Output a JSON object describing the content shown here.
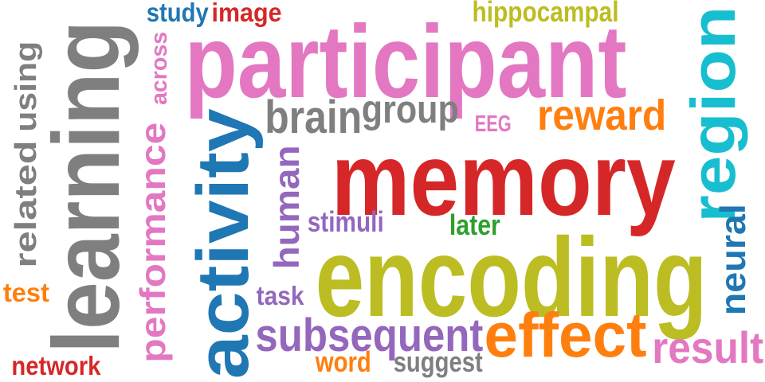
{
  "word_cloud": {
    "words": [
      {
        "text": "participant",
        "color": "#e377c2",
        "orientation": "horizontal"
      },
      {
        "text": "memory",
        "color": "#d62728",
        "orientation": "horizontal"
      },
      {
        "text": "encoding",
        "color": "#bcbd22",
        "orientation": "horizontal"
      },
      {
        "text": "learning",
        "color": "#7f7f7f",
        "orientation": "vertical"
      },
      {
        "text": "activity",
        "color": "#1f77b4",
        "orientation": "vertical"
      },
      {
        "text": "region",
        "color": "#17becf",
        "orientation": "vertical"
      },
      {
        "text": "effect",
        "color": "#ff7f0e",
        "orientation": "horizontal"
      },
      {
        "text": "subsequent",
        "color": "#9467bd",
        "orientation": "horizontal"
      },
      {
        "text": "brain",
        "color": "#7f7f7f",
        "orientation": "horizontal"
      },
      {
        "text": "group",
        "color": "#7f7f7f",
        "orientation": "horizontal"
      },
      {
        "text": "reward",
        "color": "#ff7f0e",
        "orientation": "horizontal"
      },
      {
        "text": "result",
        "color": "#e377c2",
        "orientation": "horizontal"
      },
      {
        "text": "performance",
        "color": "#e377c2",
        "orientation": "vertical"
      },
      {
        "text": "human",
        "color": "#9467bd",
        "orientation": "vertical"
      },
      {
        "text": "neural",
        "color": "#1f77b4",
        "orientation": "vertical"
      },
      {
        "text": "related",
        "color": "#7f7f7f",
        "orientation": "vertical"
      },
      {
        "text": "using",
        "color": "#7f7f7f",
        "orientation": "vertical"
      },
      {
        "text": "study",
        "color": "#1f77b4",
        "orientation": "horizontal"
      },
      {
        "text": "image",
        "color": "#d62728",
        "orientation": "horizontal"
      },
      {
        "text": "hippocampal",
        "color": "#bcbd22",
        "orientation": "horizontal"
      },
      {
        "text": "across",
        "color": "#e377c2",
        "orientation": "vertical"
      },
      {
        "text": "EEG",
        "color": "#e377c2",
        "orientation": "horizontal"
      },
      {
        "text": "stimuli",
        "color": "#9467bd",
        "orientation": "horizontal"
      },
      {
        "text": "later",
        "color": "#2ca02c",
        "orientation": "horizontal"
      },
      {
        "text": "task",
        "color": "#9467bd",
        "orientation": "horizontal"
      },
      {
        "text": "test",
        "color": "#ff7f0e",
        "orientation": "horizontal"
      },
      {
        "text": "network",
        "color": "#d62728",
        "orientation": "horizontal"
      },
      {
        "text": "word",
        "color": "#ff7f0e",
        "orientation": "horizontal"
      },
      {
        "text": "suggest",
        "color": "#7f7f7f",
        "orientation": "horizontal"
      }
    ]
  }
}
